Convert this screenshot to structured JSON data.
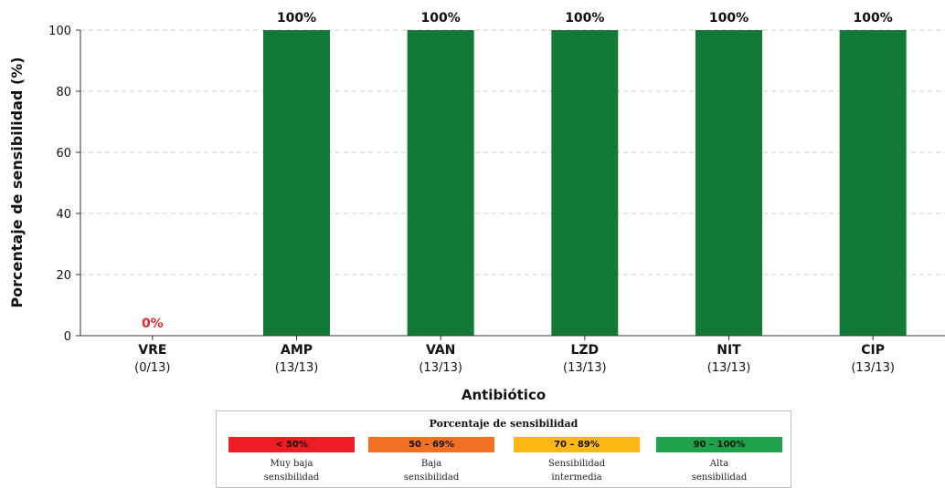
{
  "chart_data": {
    "type": "bar",
    "ylabel": "Porcentaje de sensibilidad (%)",
    "xlabel": "Antibiótico",
    "ylim": [
      0,
      100
    ],
    "yticks": [
      0,
      20,
      40,
      60,
      80,
      100
    ],
    "grid": true,
    "categories": [
      "VRE",
      "AMP",
      "VAN",
      "LZD",
      "NIT",
      "CIP"
    ],
    "category_counts": [
      "(0/13)",
      "(13/13)",
      "(13/13)",
      "(13/13)",
      "(13/13)",
      "(13/13)"
    ],
    "values": [
      0,
      100,
      100,
      100,
      100,
      100
    ],
    "value_labels": [
      "0%",
      "100%",
      "100%",
      "100%",
      "100%",
      "100%"
    ],
    "bar_color": "#127a36",
    "low_label_color": "#e8262a"
  },
  "legend": {
    "title": "Porcentaje de sensibilidad",
    "items": [
      {
        "range": "< 50%",
        "desc": "Muy baja\nsensibilidad",
        "color": "#ee1c24"
      },
      {
        "range": "50 – 69%",
        "desc": "Baja\nsensibilidad",
        "color": "#f36f21"
      },
      {
        "range": "70 – 89%",
        "desc": "Sensibilidad\nintermedia",
        "color": "#fdb813"
      },
      {
        "range": "90 – 100%",
        "desc": "Alta\nsensibilidad",
        "color": "#1fa34a"
      }
    ]
  }
}
